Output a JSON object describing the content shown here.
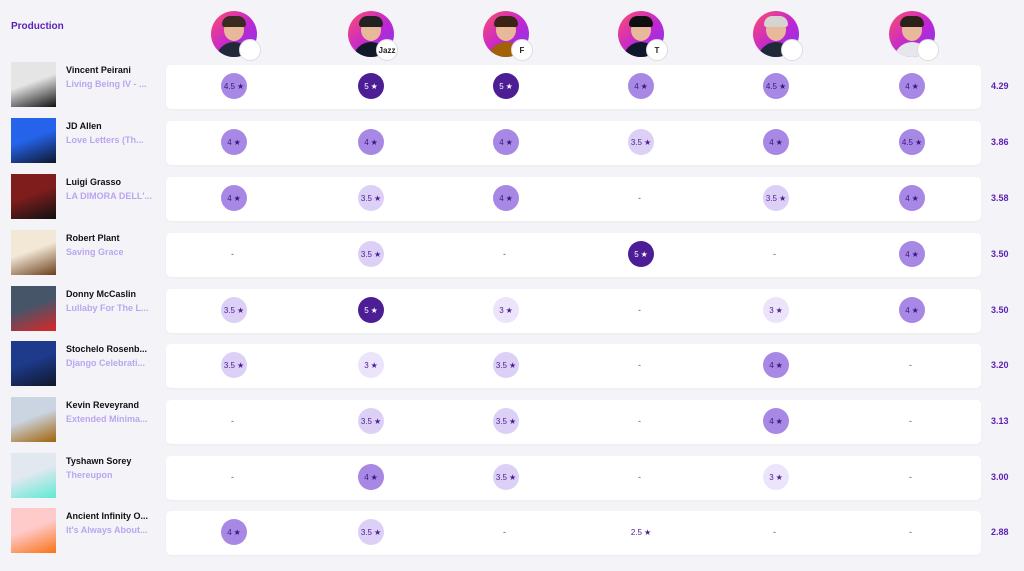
{
  "header": {
    "label": "Production"
  },
  "critics": [
    {
      "name": "critic-1",
      "publication_badge": "",
      "hair": "#3a2a20",
      "shirt": "#1f2937"
    },
    {
      "name": "critic-2",
      "publication_badge": "Jazz",
      "hair": "#222222",
      "shirt": "#111827"
    },
    {
      "name": "critic-3",
      "publication_badge": "F",
      "hair": "#3b2415",
      "shirt": "#a16207"
    },
    {
      "name": "critic-4",
      "publication_badge": "T",
      "hair": "#0f0f0f",
      "shirt": "#0f172a"
    },
    {
      "name": "critic-5",
      "publication_badge": "",
      "hair": "#d6d3d1",
      "shirt": "#1f2937"
    },
    {
      "name": "critic-6",
      "publication_badge": "",
      "hair": "#2b2118",
      "shirt": "#e5e7eb"
    }
  ],
  "rows": [
    {
      "artist": "Vincent Peirani",
      "album": "Living Being IV - ...",
      "cover_colors": [
        "#e5e5e5",
        "#111111"
      ],
      "scores": [
        "4.5",
        "5",
        "5",
        "4",
        "4.5",
        "4"
      ],
      "average": "4.29"
    },
    {
      "artist": "JD Allen",
      "album": "Love Letters (Th...",
      "cover_colors": [
        "#2563eb",
        "#0f172a"
      ],
      "scores": [
        "4",
        "4",
        "4",
        "3.5",
        "4",
        "4.5"
      ],
      "average": "3.86"
    },
    {
      "artist": "Luigi Grasso",
      "album": "LA DIMORA DELL'...",
      "cover_colors": [
        "#7f1d1d",
        "#111111"
      ],
      "scores": [
        "4",
        "3.5",
        "4",
        "-",
        "3.5",
        "4"
      ],
      "average": "3.58"
    },
    {
      "artist": "Robert Plant",
      "album": "Saving Grace",
      "cover_colors": [
        "#f3e8d6",
        "#6b3f1d"
      ],
      "scores": [
        "-",
        "3.5",
        "-",
        "5",
        "-",
        "4"
      ],
      "average": "3.50"
    },
    {
      "artist": "Donny McCaslin",
      "album": "Lullaby For The L...",
      "cover_colors": [
        "#475569",
        "#dc2626"
      ],
      "scores": [
        "3.5",
        "5",
        "3",
        "-",
        "3",
        "4"
      ],
      "average": "3.50"
    },
    {
      "artist": "Stochelo Rosenb...",
      "album": "Django Celebrati...",
      "cover_colors": [
        "#1e3a8a",
        "#0f172a"
      ],
      "scores": [
        "3.5",
        "3",
        "3.5",
        "-",
        "4",
        "-"
      ],
      "average": "3.20"
    },
    {
      "artist": "Kevin Reveyrand",
      "album": "Extended Minima...",
      "cover_colors": [
        "#cbd5e1",
        "#a16207"
      ],
      "scores": [
        "-",
        "3.5",
        "3.5",
        "-",
        "4",
        "-"
      ],
      "average": "3.13"
    },
    {
      "artist": "Tyshawn Sorey",
      "album": "Thereupon",
      "cover_colors": [
        "#e2e8f0",
        "#5eead4"
      ],
      "scores": [
        "-",
        "4",
        "3.5",
        "-",
        "3",
        "-"
      ],
      "average": "3.00"
    },
    {
      "artist": "Ancient Infinity O...",
      "album": "It's Always About...",
      "cover_colors": [
        "#fecaca",
        "#f97316"
      ],
      "scores": [
        "4",
        "3.5",
        "-",
        "2.5",
        "-",
        "-"
      ],
      "average": "2.88"
    }
  ],
  "star_glyph": "★",
  "dash_glyph": "-"
}
